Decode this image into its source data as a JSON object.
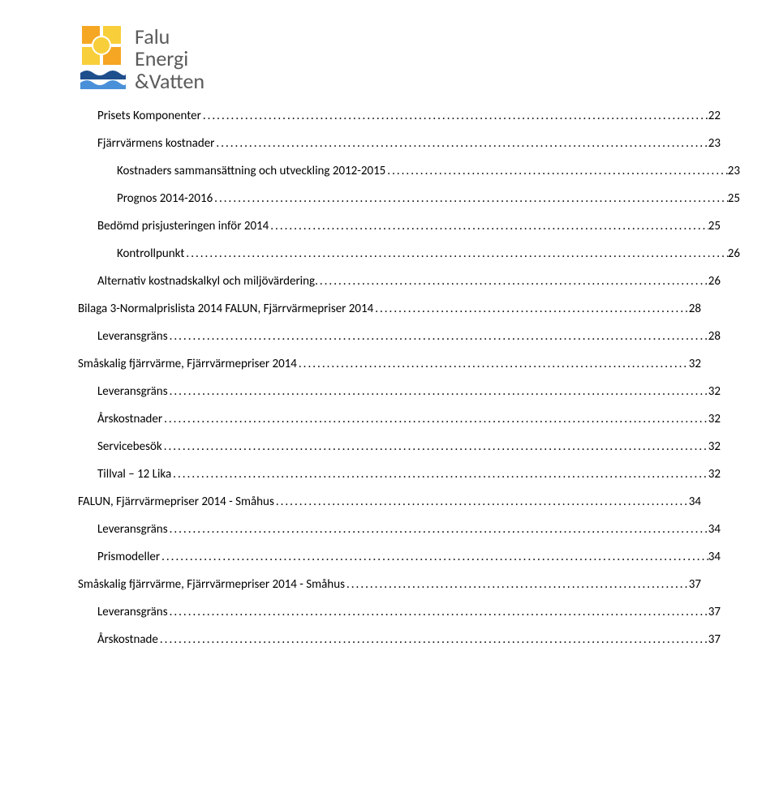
{
  "logo": {
    "line1": "Falu",
    "line2": "Energi",
    "line3": "&Vatten",
    "sun_colors": {
      "orange": "#f5a623",
      "yellow": "#f8cf3a",
      "blue_dark": "#1e4e8c",
      "blue_light": "#4a90d9"
    }
  },
  "toc": [
    {
      "level": 1,
      "label": "Prisets Komponenter",
      "page": "22"
    },
    {
      "level": 1,
      "label": "Fjärrvärmens kostnader",
      "page": "23"
    },
    {
      "level": 2,
      "label": "Kostnaders sammansättning och utveckling 2012-2015",
      "page": "23"
    },
    {
      "level": 2,
      "label": "Prognos 2014-2016",
      "page": "25"
    },
    {
      "level": 1,
      "label": "Bedömd prisjusteringen inför 2014",
      "page": "25"
    },
    {
      "level": 2,
      "label": "Kontrollpunkt",
      "page": "26"
    },
    {
      "level": 1,
      "label": "Alternativ kostnadskalkyl och miljövärdering.",
      "page": "26"
    },
    {
      "level": 0,
      "label": "Bilaga 3-Normalprislista 2014   FALUN, Fjärrvärmepriser 2014",
      "page": "28"
    },
    {
      "level": 1,
      "label": "Leveransgräns",
      "page": "28"
    },
    {
      "level": 0,
      "label": "Småskalig fjärrvärme, Fjärrvärmepriser 2014",
      "page": "32"
    },
    {
      "level": 1,
      "label": "Leveransgräns",
      "page": "32"
    },
    {
      "level": 1,
      "label": "Årskostnader",
      "page": "32"
    },
    {
      "level": 1,
      "label": "Servicebesök",
      "page": "32"
    },
    {
      "level": 1,
      "label": "Tillval – 12 Lika",
      "page": "32"
    },
    {
      "level": 0,
      "label": "FALUN, Fjärrvärmepriser 2014 - Småhus",
      "page": "34"
    },
    {
      "level": 1,
      "label": "Leveransgräns",
      "page": "34"
    },
    {
      "level": 1,
      "label": "Prismodeller",
      "page": "34"
    },
    {
      "level": 0,
      "label": "Småskalig fjärrvärme, Fjärrvärmepriser 2014 - Småhus",
      "page": "37"
    },
    {
      "level": 1,
      "label": "Leveransgräns",
      "page": "37"
    },
    {
      "level": 1,
      "label": "Årskostnade",
      "page": "37"
    }
  ]
}
